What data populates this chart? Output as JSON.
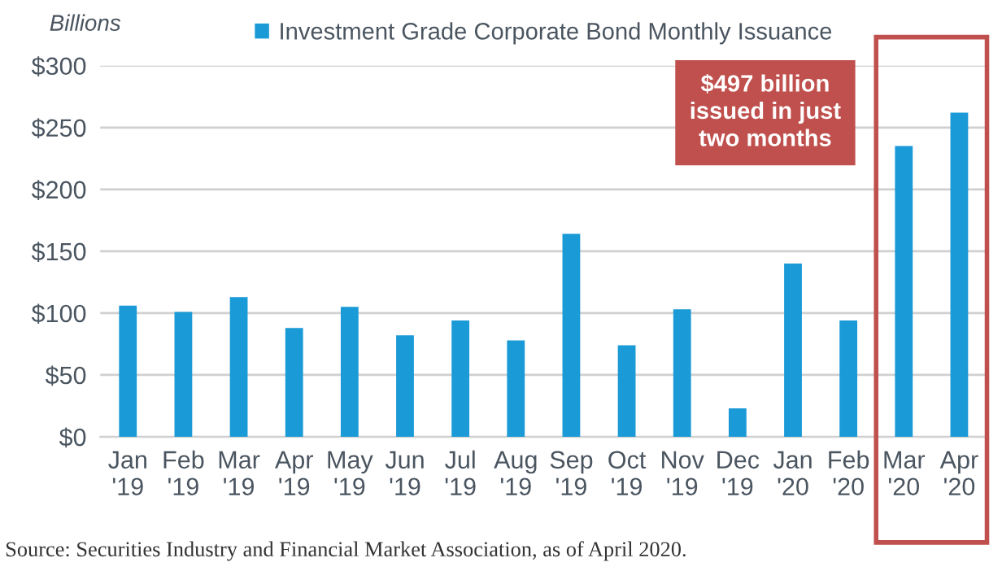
{
  "chart_data": {
    "type": "bar",
    "ylabel": "Billions",
    "categories": [
      "Jan\n'19",
      "Feb\n'19",
      "Mar\n'19",
      "Apr\n'19",
      "May\n'19",
      "Jun\n'19",
      "Jul\n'19",
      "Aug\n'19",
      "Sep\n'19",
      "Oct\n'19",
      "Nov\n'19",
      "Dec\n'19",
      "Jan\n'20",
      "Feb\n'20",
      "Mar\n'20",
      "Apr\n'20"
    ],
    "series": [
      {
        "name": "Investment Grade Corporate Bond Monthly Issuance",
        "color": "#1a9ad6",
        "values": [
          106,
          101,
          113,
          88,
          105,
          82,
          94,
          78,
          164,
          74,
          103,
          23,
          140,
          94,
          235,
          262
        ]
      }
    ],
    "ylim": [
      0,
      300
    ],
    "yticks": [
      {
        "value": 0,
        "label": "$0"
      },
      {
        "value": 50,
        "label": "$50"
      },
      {
        "value": 100,
        "label": "$100"
      },
      {
        "value": 150,
        "label": "$150"
      },
      {
        "value": 200,
        "label": "$200"
      },
      {
        "value": 250,
        "label": "$250"
      },
      {
        "value": 300,
        "label": "$300"
      }
    ],
    "grid": "y",
    "legend": "top",
    "annotations": [
      "$497 billion\nissued in just\ntwo months",
      "Source: Securities Industry and Financial Market Association, as of April 2020."
    ]
  }
}
